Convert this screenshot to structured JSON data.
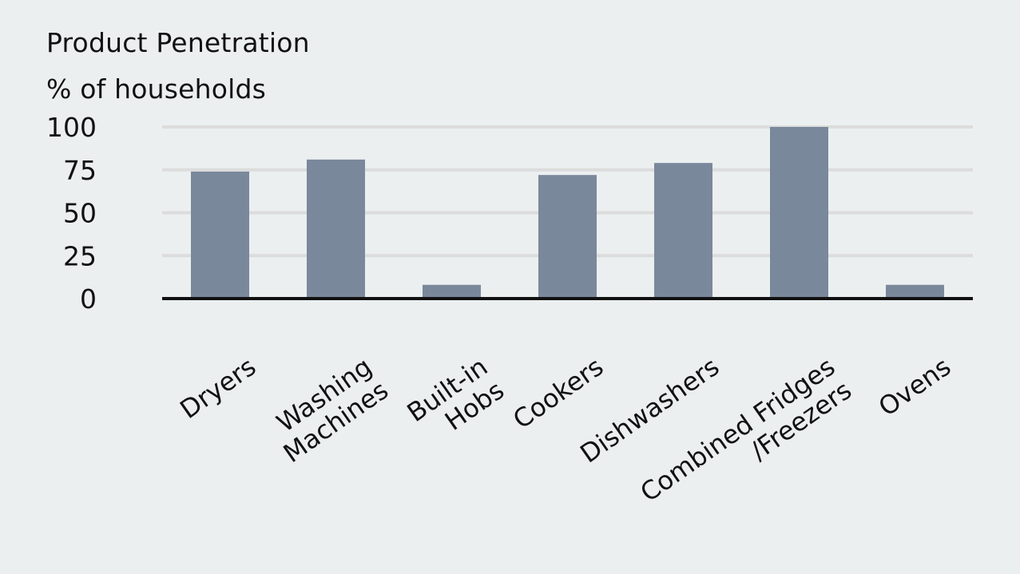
{
  "chart_data": {
    "type": "bar",
    "title": "Product Penetration",
    "ylabel": "% of households",
    "xlabel": "",
    "categories": [
      [
        "Dryers"
      ],
      [
        "Washing",
        "Machines"
      ],
      [
        "Built-in",
        "Hobs"
      ],
      [
        "Cookers"
      ],
      [
        "Dishwashers"
      ],
      [
        "Combined Fridges",
        "/Freezers"
      ],
      [
        "Ovens"
      ]
    ],
    "values": [
      74,
      81,
      8,
      72,
      79,
      100,
      8
    ],
    "ylim": [
      0,
      100
    ],
    "yticks": [
      "0",
      "25",
      "50",
      "75",
      "100"
    ],
    "grid": true,
    "bar_color": "#7a889b",
    "gridline_color": "#dcdcdc",
    "axis_color": "#111111"
  }
}
